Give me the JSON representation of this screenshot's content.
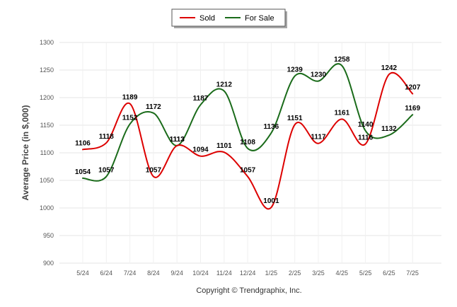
{
  "chart_data": {
    "type": "line",
    "title": "",
    "xlabel": "",
    "ylabel": "Average Price (in $,000)",
    "categories": [
      "5/24",
      "6/24",
      "7/24",
      "8/24",
      "9/24",
      "10/24",
      "11/24",
      "12/24",
      "1/25",
      "2/25",
      "3/25",
      "4/25",
      "5/25",
      "6/25",
      "7/25"
    ],
    "ylim": [
      900,
      1300
    ],
    "yticks": [
      "900",
      "950",
      "1000",
      "1050",
      "1100",
      "1150",
      "1200",
      "1250",
      "1300"
    ],
    "grid": true,
    "legend_position": "top-center",
    "series": [
      {
        "name": "Sold",
        "color": "#dd0000",
        "values": [
          1106,
          1118,
          1189,
          1057,
          1113,
          1094,
          1101,
          1057,
          1001,
          1151,
          1117,
          1161,
          1116,
          1242,
          1207
        ],
        "labels": [
          "1106",
          "1118",
          "1189",
          "1057",
          "1113",
          "1094",
          "1101",
          "1057",
          "1001",
          "1151",
          "1117",
          "1161",
          "1116",
          "1242",
          "1207"
        ]
      },
      {
        "name": "For Sale",
        "color": "#1a6b1a",
        "values": [
          1054,
          1057,
          1152,
          1172,
          1113,
          1187,
          1212,
          1108,
          1136,
          1239,
          1230,
          1258,
          1140,
          1132,
          1169
        ],
        "labels": [
          "1054",
          "1057",
          "1152",
          "1172",
          "1113",
          "1187",
          "1212",
          "1108",
          "1136",
          "1239",
          "1230",
          "1258",
          "1140",
          "1132",
          "1169"
        ]
      }
    ]
  },
  "footer": {
    "copyright": "Copyright © Trendgraphix, Inc."
  }
}
